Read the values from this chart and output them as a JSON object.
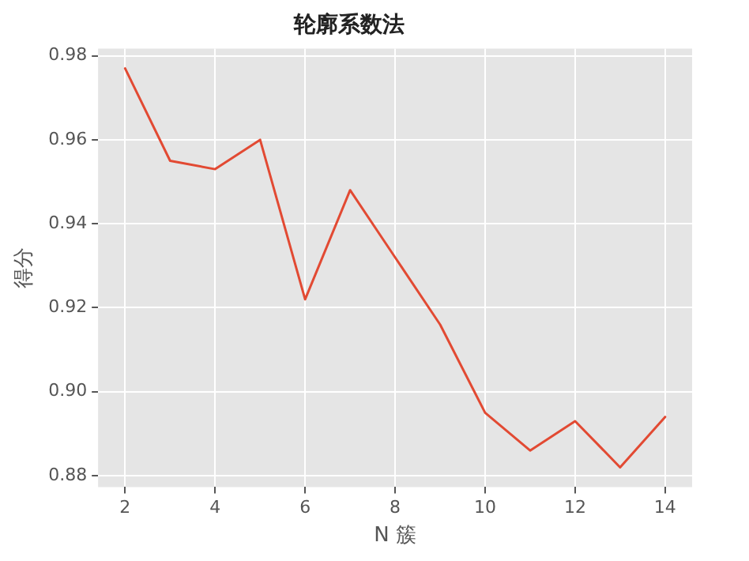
{
  "chart_data": {
    "type": "line",
    "title": "轮廓系数法",
    "xlabel": "N 簇",
    "ylabel": "得分",
    "x": [
      2,
      3,
      4,
      5,
      6,
      7,
      8,
      9,
      10,
      11,
      12,
      13,
      14
    ],
    "series": [
      {
        "color": "#e24a33",
        "values": [
          0.977,
          0.955,
          0.953,
          0.96,
          0.922,
          0.948,
          0.932,
          0.916,
          0.895,
          0.886,
          0.893,
          0.882,
          0.894
        ]
      }
    ],
    "xlim": [
      1.4,
      14.6
    ],
    "xticks": [
      2,
      4,
      6,
      8,
      10,
      12,
      14
    ],
    "ylim": [
      0.8773,
      0.9817
    ],
    "yticks": [
      0.88,
      {
        "value": 0.9,
        "label": "0.90"
      },
      0.92,
      0.94,
      0.96,
      0.98
    ],
    "grid": true,
    "legend": false,
    "marker": "none",
    "line_style": "solid"
  }
}
